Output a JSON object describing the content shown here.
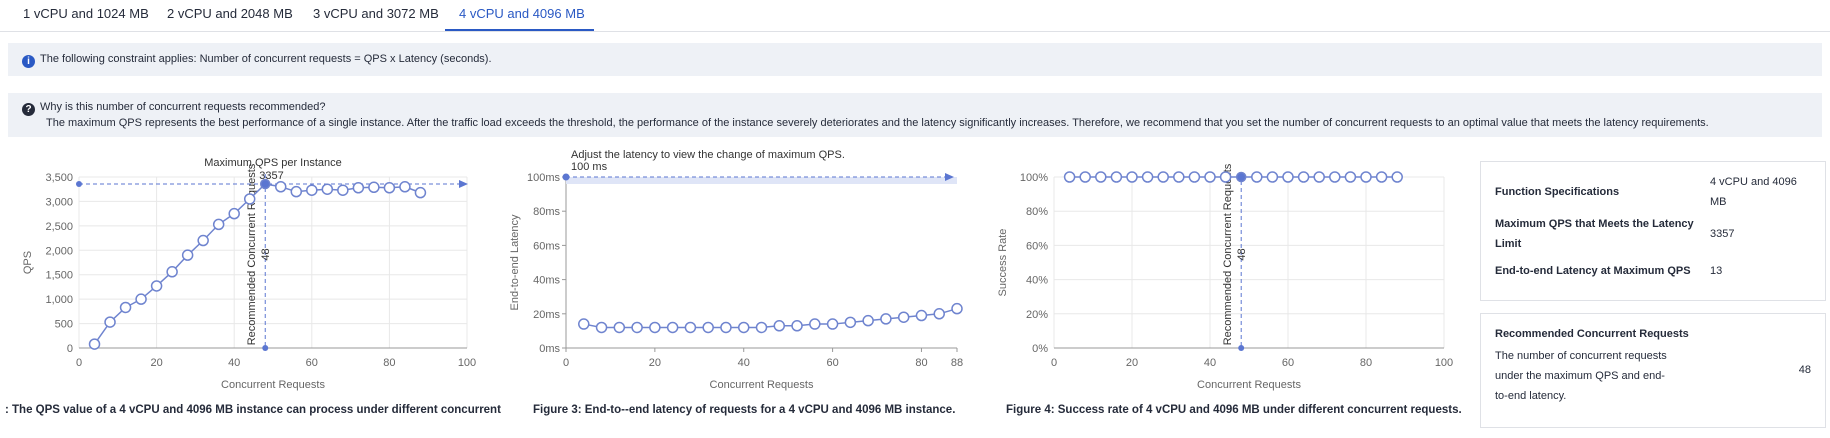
{
  "tabs": [
    "1 vCPU and 1024 MB",
    "2 vCPU and 2048 MB",
    "3 vCPU and 3072 MB",
    "4 vCPU and 4096 MB"
  ],
  "notice": "The following constraint applies: Number of concurrent requests = QPS x Latency (seconds).",
  "why": {
    "title": "Why is this number of concurrent requests recommended?",
    "text": "The maximum QPS represents the best performance of a single instance. After the traffic load exceeds the threshold, the performance of the instance severely deteriorates and the latency significantly increases. Therefore, we recommend that you set the number of concurrent requests to an optimal value that meets the latency requirements."
  },
  "chart_data": [
    {
      "type": "line",
      "title": "Maximum QPS per Instance",
      "xlabel": "Concurrent Requests",
      "ylabel": "QPS",
      "caption": ": The QPS value of a 4 vCPU and 4096 MB instance can process under different concurrent",
      "color": "#6f84cf",
      "x": [
        4,
        8,
        12,
        16,
        20,
        24,
        28,
        32,
        36,
        40,
        44,
        48,
        52,
        56,
        60,
        64,
        68,
        72,
        76,
        80,
        84,
        88
      ],
      "values": [
        80,
        530,
        830,
        1000,
        1270,
        1560,
        1900,
        2200,
        2530,
        2750,
        3050,
        3357,
        3300,
        3200,
        3230,
        3250,
        3230,
        3280,
        3290,
        3280,
        3300,
        3180
      ],
      "xlim": [
        0,
        100
      ],
      "xticks": [
        0,
        20,
        40,
        60,
        80,
        100
      ],
      "ylim": [
        0,
        3500
      ],
      "yticks": [
        0,
        500,
        {
          "value": 1000,
          "label": "1,000"
        },
        {
          "value": 1500,
          "label": "1,500"
        },
        {
          "value": 2000,
          "label": "2,000"
        },
        {
          "value": 2500,
          "label": "2,500"
        },
        {
          "value": 3000,
          "label": "3,000"
        },
        {
          "value": 3500,
          "label": "3,500"
        }
      ],
      "grid": true,
      "max_value": 3357,
      "recommended_label": "Recommended Concurrent Requests",
      "recommended_value": 48
    },
    {
      "type": "line",
      "title": "Adjust the latency to view the change of maximum QPS.",
      "xlabel": "Concurrent Requests",
      "ylabel": "End-to-end Latency",
      "caption": "Figure 3: End-to--end latency of requests for a 4 vCPU and 4096 MB instance.",
      "color": "#6f84cf",
      "x": [
        4,
        8,
        12,
        16,
        20,
        24,
        28,
        32,
        36,
        40,
        44,
        48,
        52,
        56,
        60,
        64,
        68,
        72,
        76,
        80,
        84,
        88
      ],
      "values": [
        14,
        12,
        12,
        12,
        12,
        12,
        12,
        12,
        12,
        12,
        12,
        13,
        13,
        14,
        14,
        15,
        16,
        17,
        18,
        19,
        20,
        23
      ],
      "xlim": [
        0,
        88
      ],
      "xticks": [
        0,
        20,
        40,
        60,
        80,
        88
      ],
      "ylim": [
        0,
        100
      ],
      "yticks": [
        {
          "value": 0,
          "label": "0ms"
        },
        {
          "value": 20,
          "label": "20ms"
        },
        {
          "value": 40,
          "label": "40ms"
        },
        {
          "value": 60,
          "label": "60ms"
        },
        {
          "value": 80,
          "label": "80ms"
        },
        {
          "value": 100,
          "label": "100ms"
        }
      ],
      "grid": false,
      "threshold": 100,
      "threshold_label": "100 ms"
    },
    {
      "type": "line",
      "xlabel": "Concurrent Requests",
      "ylabel": "Success Rate",
      "caption": "Figure 4: Success rate of 4 vCPU and 4096 MB under different concurrent requests.",
      "color": "#6f84cf",
      "x": [
        4,
        8,
        12,
        16,
        20,
        24,
        28,
        32,
        36,
        40,
        44,
        48,
        52,
        56,
        60,
        64,
        68,
        72,
        76,
        80,
        84,
        88
      ],
      "values": [
        100,
        100,
        100,
        100,
        100,
        100,
        100,
        100,
        100,
        100,
        100,
        100,
        100,
        100,
        100,
        100,
        100,
        100,
        100,
        100,
        100,
        100
      ],
      "xlim": [
        0,
        100
      ],
      "xticks": [
        0,
        20,
        40,
        60,
        80,
        100
      ],
      "ylim": [
        0,
        100
      ],
      "yticks": [
        {
          "value": 0,
          "label": "0%"
        },
        {
          "value": 20,
          "label": "20%"
        },
        {
          "value": 40,
          "label": "40%"
        },
        {
          "value": 60,
          "label": "60%"
        },
        {
          "value": 80,
          "label": "80%"
        },
        {
          "value": 100,
          "label": "100%"
        }
      ],
      "grid": true,
      "recommended_label": "Recommended Concurrent Requests",
      "recommended_value": 48
    }
  ],
  "specs": [
    [
      "Function Specifications",
      "4 vCPU and 4096 MB"
    ],
    [
      "Maximum QPS that Meets the Latency Limit",
      "3357"
    ],
    [
      "End-to-end Latency at Maximum QPS",
      "13"
    ]
  ],
  "recommended": {
    "title": "Recommended Concurrent Requests",
    "text": "The number of concurrent requests under the maximum QPS and end-to-end latency.",
    "value": "48"
  }
}
